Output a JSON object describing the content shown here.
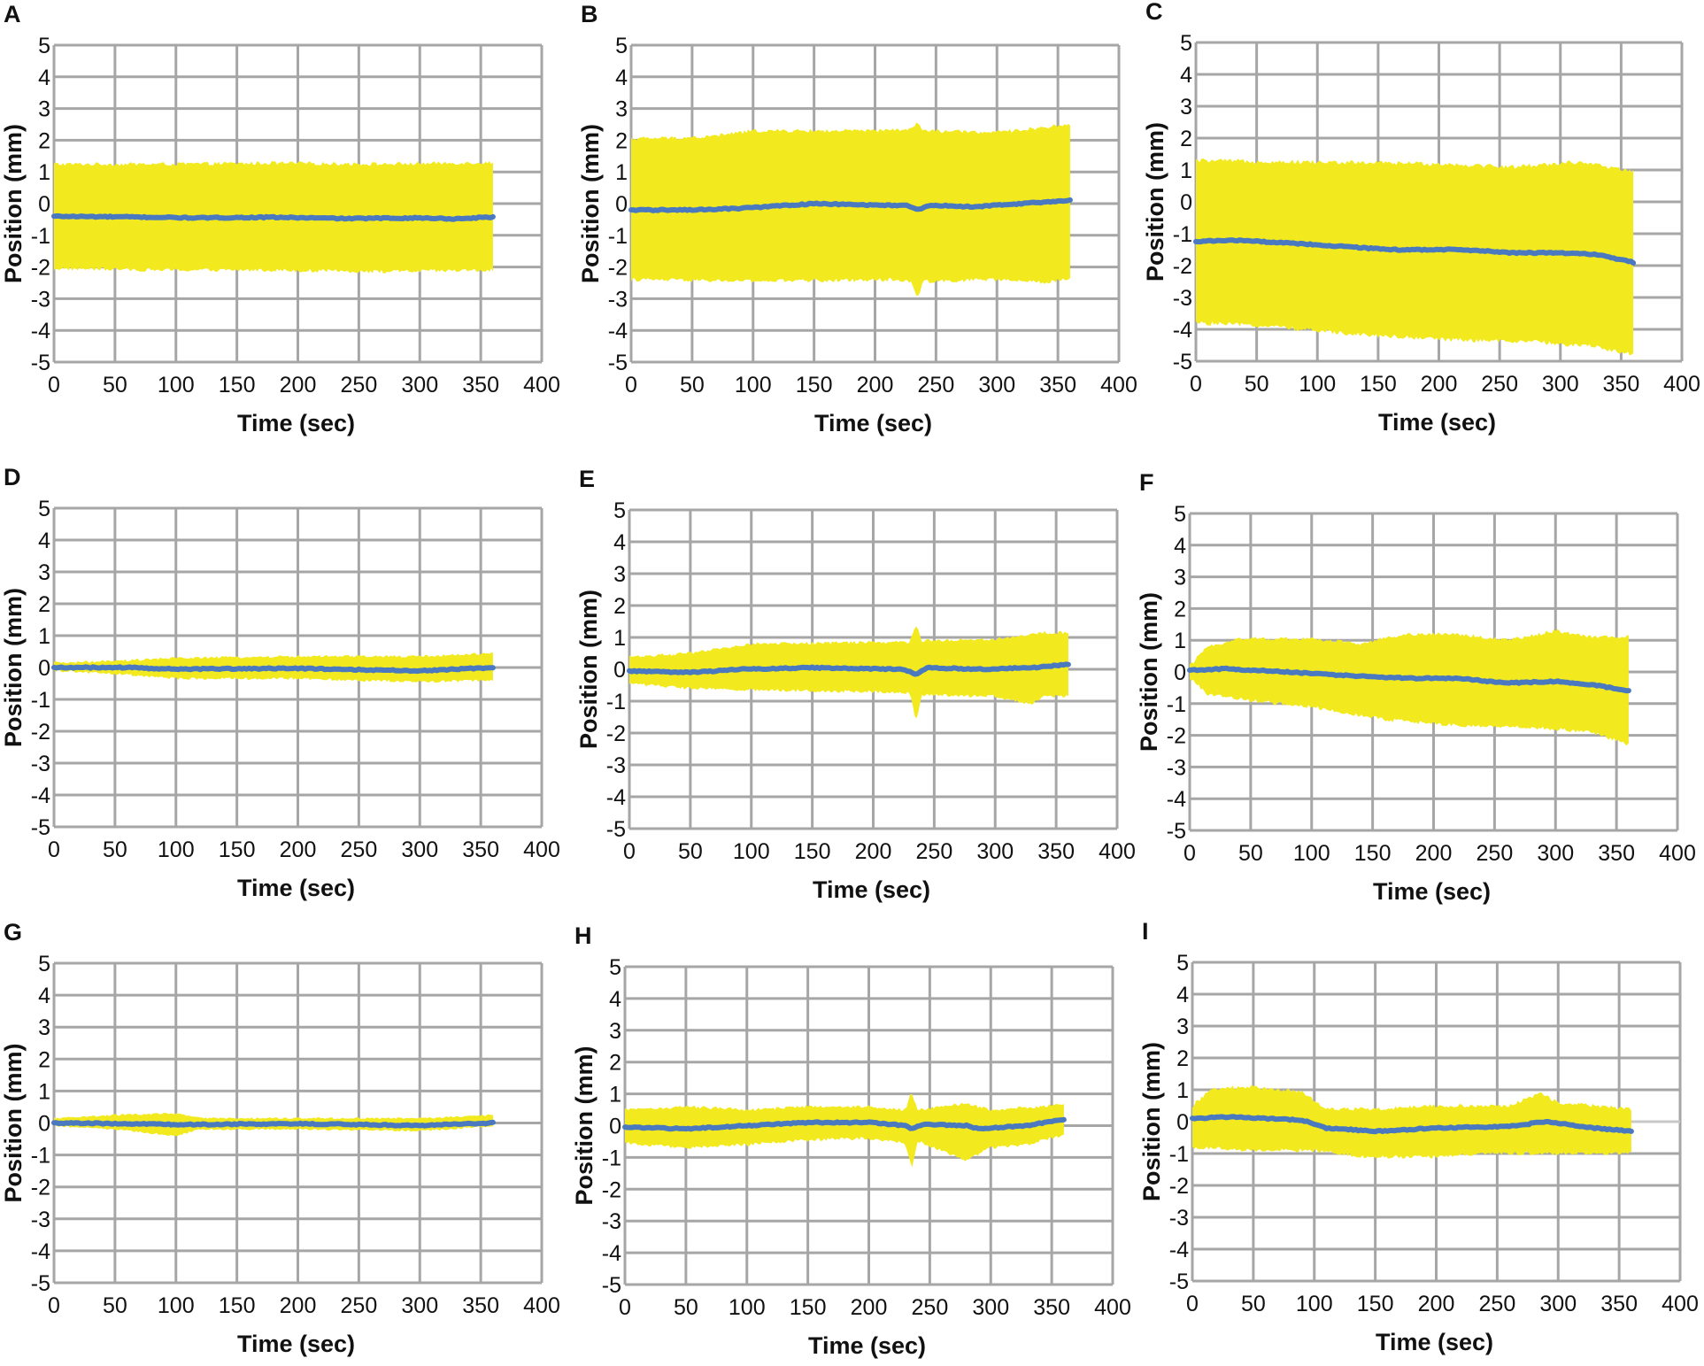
{
  "figure": {
    "description_label": "Nine panels A–I of position (mm) vs time (sec): mean position line (blue) with range band (yellow)"
  },
  "colors": {
    "band": "#f2ea1f",
    "mean_line": "#4a79c0",
    "grid": "#a6a6a6",
    "zero_line_extension": "#c8c8c8"
  },
  "chart_data": [
    {
      "panel": "A",
      "type": "area",
      "xlabel": "Time (sec)",
      "ylabel": "Position (mm)",
      "xlim": [
        0,
        400
      ],
      "ylim": [
        -5,
        5
      ],
      "xticks": [
        "0",
        "50",
        "100",
        "150",
        "200",
        "250",
        "300",
        "350",
        "400"
      ],
      "yticks": [
        "5",
        "4",
        "3",
        "2",
        "1",
        "0",
        "-1",
        "-2",
        "-3",
        "-4",
        "-5"
      ],
      "x_end": 360,
      "mean": [
        [
          0,
          -0.4
        ],
        [
          60,
          -0.42
        ],
        [
          120,
          -0.45
        ],
        [
          180,
          -0.43
        ],
        [
          240,
          -0.47
        ],
        [
          300,
          -0.45
        ],
        [
          330,
          -0.48
        ],
        [
          360,
          -0.42
        ]
      ],
      "upper": [
        [
          0,
          1.25
        ],
        [
          90,
          1.25
        ],
        [
          180,
          1.28
        ],
        [
          270,
          1.25
        ],
        [
          360,
          1.3
        ]
      ],
      "lower": [
        [
          0,
          -2.05
        ],
        [
          90,
          -2.1
        ],
        [
          180,
          -2.1
        ],
        [
          270,
          -2.15
        ],
        [
          360,
          -2.1
        ]
      ],
      "noise": 0.06
    },
    {
      "panel": "B",
      "type": "area",
      "xlabel": "Time (sec)",
      "ylabel": "Position (mm)",
      "xlim": [
        0,
        400
      ],
      "ylim": [
        -5,
        5
      ],
      "xticks": [
        "0",
        "50",
        "100",
        "150",
        "200",
        "250",
        "300",
        "350",
        "400"
      ],
      "yticks": [
        "5",
        "4",
        "3",
        "2",
        "1",
        "0",
        "-1",
        "-2",
        "-3",
        "-4",
        "-5"
      ],
      "x_end": 360,
      "mean": [
        [
          0,
          -0.2
        ],
        [
          50,
          -0.2
        ],
        [
          90,
          -0.15
        ],
        [
          150,
          0.0
        ],
        [
          200,
          -0.05
        ],
        [
          225,
          -0.05
        ],
        [
          235,
          -0.2
        ],
        [
          245,
          -0.05
        ],
        [
          280,
          -0.1
        ],
        [
          320,
          0.0
        ],
        [
          360,
          0.1
        ]
      ],
      "upper": [
        [
          0,
          2.05
        ],
        [
          60,
          2.1
        ],
        [
          100,
          2.3
        ],
        [
          200,
          2.3
        ],
        [
          230,
          2.35
        ],
        [
          235,
          2.55
        ],
        [
          240,
          2.3
        ],
        [
          300,
          2.25
        ],
        [
          360,
          2.5
        ]
      ],
      "lower": [
        [
          0,
          -2.4
        ],
        [
          100,
          -2.45
        ],
        [
          220,
          -2.4
        ],
        [
          230,
          -2.5
        ],
        [
          235,
          -2.95
        ],
        [
          240,
          -2.45
        ],
        [
          300,
          -2.4
        ],
        [
          340,
          -2.5
        ],
        [
          360,
          -2.35
        ]
      ],
      "noise": 0.06
    },
    {
      "panel": "C",
      "type": "area",
      "xlabel": "Time (sec)",
      "ylabel": "Position (mm)",
      "xlim": [
        0,
        400
      ],
      "ylim": [
        -5,
        5
      ],
      "xticks": [
        "0",
        "50",
        "100",
        "150",
        "200",
        "250",
        "300",
        "350",
        "400"
      ],
      "yticks": [
        "5",
        "4",
        "3",
        "2",
        "1",
        "0",
        "-1",
        "-2",
        "-3",
        "-4",
        "-5"
      ],
      "x_end": 360,
      "mean": [
        [
          0,
          -1.25
        ],
        [
          30,
          -1.2
        ],
        [
          80,
          -1.3
        ],
        [
          120,
          -1.4
        ],
        [
          160,
          -1.5
        ],
        [
          220,
          -1.5
        ],
        [
          260,
          -1.6
        ],
        [
          300,
          -1.6
        ],
        [
          330,
          -1.65
        ],
        [
          360,
          -1.9
        ]
      ],
      "upper": [
        [
          0,
          1.3
        ],
        [
          100,
          1.25
        ],
        [
          200,
          1.2
        ],
        [
          260,
          1.1
        ],
        [
          310,
          1.25
        ],
        [
          340,
          1.1
        ],
        [
          360,
          0.95
        ]
      ],
      "lower": [
        [
          0,
          -3.8
        ],
        [
          60,
          -3.9
        ],
        [
          100,
          -4.05
        ],
        [
          150,
          -4.2
        ],
        [
          220,
          -4.35
        ],
        [
          280,
          -4.4
        ],
        [
          330,
          -4.55
        ],
        [
          360,
          -4.8
        ]
      ],
      "noise": 0.07
    },
    {
      "panel": "D",
      "type": "area",
      "xlabel": "Time (sec)",
      "ylabel": "Position (mm)",
      "xlim": [
        0,
        400
      ],
      "ylim": [
        -5,
        5
      ],
      "xticks": [
        "0",
        "50",
        "100",
        "150",
        "200",
        "250",
        "300",
        "350",
        "400"
      ],
      "yticks": [
        "5",
        "4",
        "3",
        "2",
        "1",
        "0",
        "-1",
        "-2",
        "-3",
        "-4",
        "-5"
      ],
      "x_end": 360,
      "mean": [
        [
          0,
          0.0
        ],
        [
          60,
          0.0
        ],
        [
          100,
          -0.05
        ],
        [
          200,
          -0.03
        ],
        [
          300,
          -0.1
        ],
        [
          330,
          -0.05
        ],
        [
          360,
          0.0
        ]
      ],
      "upper": [
        [
          0,
          0.15
        ],
        [
          50,
          0.2
        ],
        [
          100,
          0.3
        ],
        [
          200,
          0.35
        ],
        [
          300,
          0.35
        ],
        [
          360,
          0.45
        ]
      ],
      "lower": [
        [
          0,
          -0.1
        ],
        [
          50,
          -0.2
        ],
        [
          100,
          -0.35
        ],
        [
          200,
          -0.35
        ],
        [
          300,
          -0.45
        ],
        [
          360,
          -0.4
        ]
      ],
      "noise": 0.04
    },
    {
      "panel": "E",
      "type": "area",
      "xlabel": "Time (sec)",
      "ylabel": "Position (mm)",
      "xlim": [
        0,
        400
      ],
      "ylim": [
        -5,
        5
      ],
      "xticks": [
        "0",
        "50",
        "100",
        "150",
        "200",
        "250",
        "300",
        "350",
        "400"
      ],
      "yticks": [
        "5",
        "4",
        "3",
        "2",
        "1",
        "0",
        "-1",
        "-2",
        "-3",
        "-4",
        "-5"
      ],
      "x_end": 360,
      "mean": [
        [
          0,
          -0.05
        ],
        [
          50,
          -0.1
        ],
        [
          90,
          0.0
        ],
        [
          150,
          0.05
        ],
        [
          225,
          0.0
        ],
        [
          235,
          -0.15
        ],
        [
          245,
          0.05
        ],
        [
          290,
          0.0
        ],
        [
          330,
          0.05
        ],
        [
          360,
          0.15
        ]
      ],
      "upper": [
        [
          0,
          0.4
        ],
        [
          50,
          0.5
        ],
        [
          100,
          0.8
        ],
        [
          200,
          0.85
        ],
        [
          230,
          0.85
        ],
        [
          235,
          1.4
        ],
        [
          240,
          0.9
        ],
        [
          300,
          0.95
        ],
        [
          340,
          1.15
        ],
        [
          360,
          1.15
        ]
      ],
      "lower": [
        [
          0,
          -0.45
        ],
        [
          50,
          -0.6
        ],
        [
          100,
          -0.65
        ],
        [
          200,
          -0.7
        ],
        [
          230,
          -0.75
        ],
        [
          235,
          -1.65
        ],
        [
          240,
          -0.8
        ],
        [
          300,
          -0.85
        ],
        [
          330,
          -1.1
        ],
        [
          340,
          -0.85
        ],
        [
          360,
          -0.85
        ]
      ],
      "noise": 0.05
    },
    {
      "panel": "F",
      "type": "area",
      "xlabel": "Time (sec)",
      "ylabel": "Position (mm)",
      "xlim": [
        0,
        400
      ],
      "ylim": [
        -5,
        5
      ],
      "xticks": [
        "0",
        "50",
        "100",
        "150",
        "200",
        "250",
        "300",
        "350",
        "400"
      ],
      "yticks": [
        "5",
        "4",
        "3",
        "2",
        "1",
        "0",
        "-1",
        "-2",
        "-3",
        "-4",
        "-5"
      ],
      "x_end": 360,
      "mean": [
        [
          0,
          0.05
        ],
        [
          30,
          0.1
        ],
        [
          80,
          0.0
        ],
        [
          120,
          -0.1
        ],
        [
          180,
          -0.2
        ],
        [
          220,
          -0.2
        ],
        [
          260,
          -0.35
        ],
        [
          300,
          -0.3
        ],
        [
          330,
          -0.4
        ],
        [
          360,
          -0.6
        ]
      ],
      "upper": [
        [
          0,
          0.2
        ],
        [
          15,
          0.8
        ],
        [
          40,
          1.05
        ],
        [
          100,
          1.05
        ],
        [
          140,
          0.9
        ],
        [
          180,
          1.2
        ],
        [
          220,
          1.2
        ],
        [
          260,
          1.0
        ],
        [
          300,
          1.3
        ],
        [
          330,
          1.1
        ],
        [
          360,
          1.1
        ]
      ],
      "lower": [
        [
          0,
          -0.2
        ],
        [
          15,
          -0.7
        ],
        [
          50,
          -0.9
        ],
        [
          100,
          -1.1
        ],
        [
          160,
          -1.5
        ],
        [
          220,
          -1.7
        ],
        [
          280,
          -1.75
        ],
        [
          330,
          -1.9
        ],
        [
          360,
          -2.3
        ]
      ],
      "noise": 0.06
    },
    {
      "panel": "G",
      "type": "area",
      "xlabel": "Time (sec)",
      "ylabel": "Position (mm)",
      "xlim": [
        0,
        400
      ],
      "ylim": [
        -5,
        5
      ],
      "xticks": [
        "0",
        "50",
        "100",
        "150",
        "200",
        "250",
        "300",
        "350",
        "400"
      ],
      "yticks": [
        "5",
        "4",
        "3",
        "2",
        "1",
        "0",
        "-1",
        "-2",
        "-3",
        "-4",
        "-5"
      ],
      "x_end": 360,
      "mean": [
        [
          0,
          0.0
        ],
        [
          80,
          -0.03
        ],
        [
          100,
          -0.05
        ],
        [
          200,
          -0.02
        ],
        [
          300,
          -0.08
        ],
        [
          360,
          0.0
        ]
      ],
      "upper": [
        [
          0,
          0.15
        ],
        [
          50,
          0.25
        ],
        [
          100,
          0.3
        ],
        [
          120,
          0.15
        ],
        [
          200,
          0.15
        ],
        [
          300,
          0.15
        ],
        [
          360,
          0.25
        ]
      ],
      "lower": [
        [
          0,
          -0.1
        ],
        [
          50,
          -0.2
        ],
        [
          100,
          -0.4
        ],
        [
          120,
          -0.2
        ],
        [
          200,
          -0.2
        ],
        [
          300,
          -0.25
        ],
        [
          360,
          -0.1
        ]
      ],
      "noise": 0.03
    },
    {
      "panel": "H",
      "type": "area",
      "xlabel": "Time (sec)",
      "ylabel": "Position (mm)",
      "xlim": [
        0,
        400
      ],
      "ylim": [
        -5,
        5
      ],
      "xticks": [
        "0",
        "50",
        "100",
        "150",
        "200",
        "250",
        "300",
        "350",
        "400"
      ],
      "yticks": [
        "5",
        "4",
        "3",
        "2",
        "1",
        "0",
        "-1",
        "-2",
        "-3",
        "-4",
        "-5"
      ],
      "x_end": 360,
      "mean": [
        [
          0,
          -0.05
        ],
        [
          50,
          -0.1
        ],
        [
          100,
          0.0
        ],
        [
          150,
          0.1
        ],
        [
          200,
          0.1
        ],
        [
          230,
          0.0
        ],
        [
          235,
          -0.1
        ],
        [
          245,
          0.05
        ],
        [
          280,
          0.0
        ],
        [
          290,
          -0.1
        ],
        [
          330,
          0.0
        ],
        [
          360,
          0.2
        ]
      ],
      "upper": [
        [
          0,
          0.5
        ],
        [
          50,
          0.6
        ],
        [
          100,
          0.5
        ],
        [
          150,
          0.6
        ],
        [
          200,
          0.6
        ],
        [
          230,
          0.5
        ],
        [
          235,
          1.05
        ],
        [
          240,
          0.5
        ],
        [
          280,
          0.7
        ],
        [
          300,
          0.5
        ],
        [
          340,
          0.6
        ],
        [
          360,
          0.7
        ]
      ],
      "lower": [
        [
          0,
          -0.55
        ],
        [
          50,
          -0.7
        ],
        [
          100,
          -0.6
        ],
        [
          150,
          -0.45
        ],
        [
          200,
          -0.4
        ],
        [
          230,
          -0.55
        ],
        [
          235,
          -1.35
        ],
        [
          240,
          -0.5
        ],
        [
          280,
          -1.1
        ],
        [
          300,
          -0.7
        ],
        [
          330,
          -0.6
        ],
        [
          360,
          -0.3
        ]
      ],
      "noise": 0.05
    },
    {
      "panel": "I",
      "type": "area",
      "xlabel": "Time (sec)",
      "ylabel": "Position (mm)",
      "xlim": [
        0,
        400
      ],
      "ylim": [
        -5,
        5
      ],
      "xticks": [
        "0",
        "50",
        "100",
        "150",
        "200",
        "250",
        "300",
        "350",
        "400"
      ],
      "yticks": [
        "5",
        "4",
        "3",
        "2",
        "1",
        "0",
        "-1",
        "-2",
        "-3",
        "-4",
        "-5"
      ],
      "x_end": 360,
      "mean": [
        [
          0,
          0.1
        ],
        [
          30,
          0.15
        ],
        [
          90,
          0.05
        ],
        [
          110,
          -0.2
        ],
        [
          150,
          -0.3
        ],
        [
          200,
          -0.2
        ],
        [
          260,
          -0.15
        ],
        [
          290,
          0.0
        ],
        [
          330,
          -0.2
        ],
        [
          360,
          -0.3
        ]
      ],
      "upper": [
        [
          0,
          0.5
        ],
        [
          15,
          1.0
        ],
        [
          40,
          1.1
        ],
        [
          90,
          0.95
        ],
        [
          110,
          0.4
        ],
        [
          150,
          0.4
        ],
        [
          200,
          0.5
        ],
        [
          260,
          0.5
        ],
        [
          285,
          0.9
        ],
        [
          300,
          0.6
        ],
        [
          360,
          0.4
        ]
      ],
      "lower": [
        [
          0,
          -0.8
        ],
        [
          50,
          -0.9
        ],
        [
          100,
          -0.9
        ],
        [
          140,
          -1.1
        ],
        [
          200,
          -1.1
        ],
        [
          250,
          -1.0
        ],
        [
          300,
          -1.0
        ],
        [
          360,
          -1.0
        ]
      ],
      "noise": 0.06,
      "zero_extension": true
    }
  ]
}
